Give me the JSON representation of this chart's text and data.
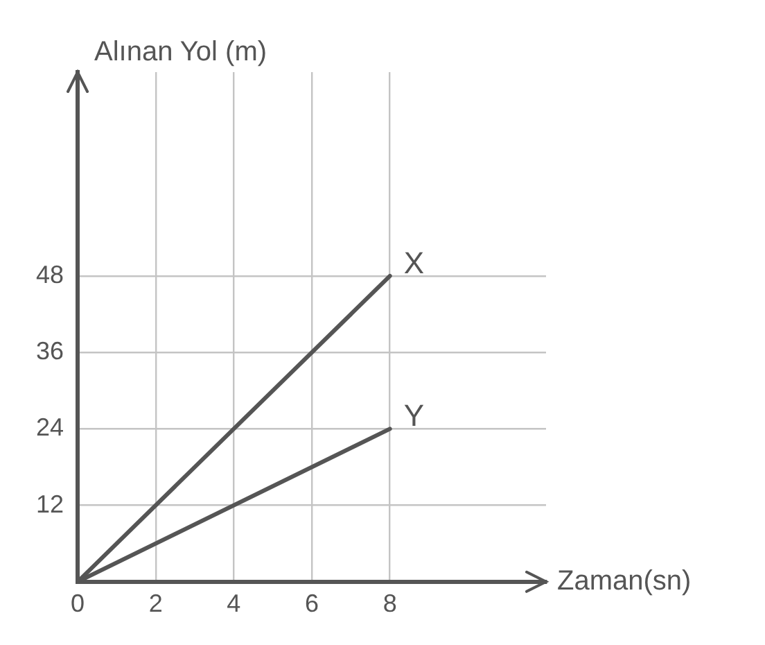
{
  "chart_data": {
    "type": "line",
    "xlabel": "Zaman(sn)",
    "ylabel": "Alınan Yol (m)",
    "x": [
      0,
      8
    ],
    "series": [
      {
        "name": "X",
        "color": "#555555",
        "values": [
          0,
          48
        ]
      },
      {
        "name": "Y",
        "color": "#555555",
        "values": [
          0,
          24
        ]
      }
    ],
    "xlim": [
      0,
      12
    ],
    "ylim": [
      0,
      80
    ],
    "xticks": [
      0,
      2,
      4,
      6,
      8
    ],
    "yticks": [
      12,
      24,
      36,
      48
    ],
    "grid": true,
    "legend": false,
    "marker": "none",
    "line_style": "solid"
  }
}
